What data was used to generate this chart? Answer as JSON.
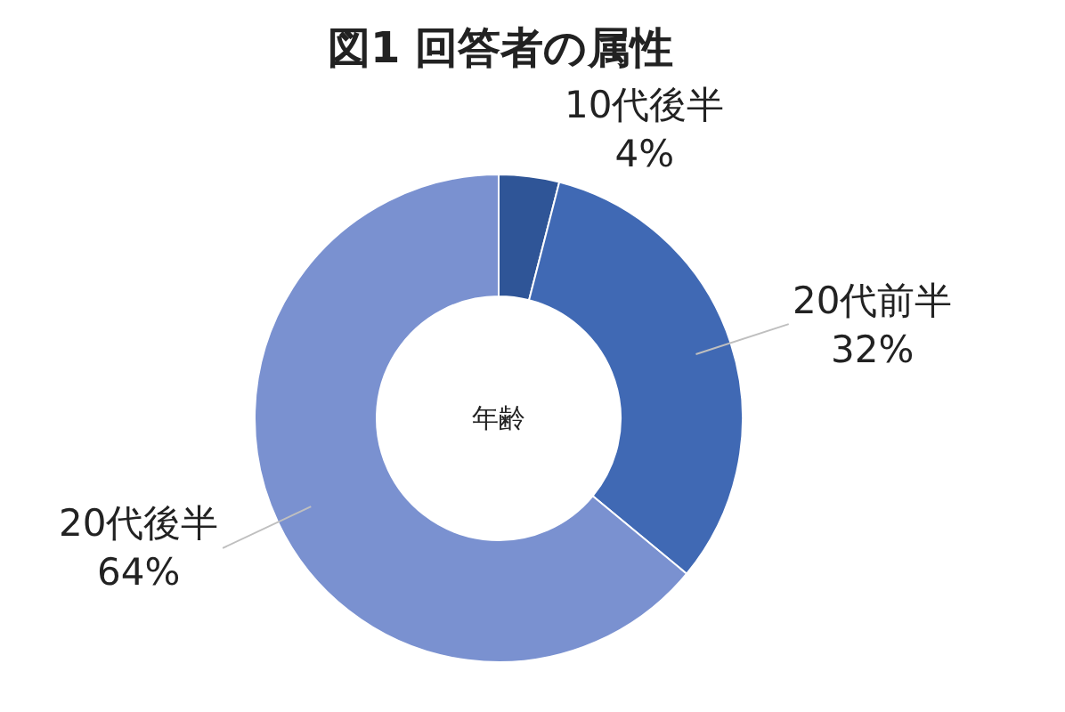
{
  "chart_data": {
    "type": "donut",
    "title": "図1 回答者の属性",
    "categories": [
      "10代後半",
      "20代前半",
      "20代後半"
    ],
    "values": [
      4,
      32,
      64
    ],
    "value_labels": [
      "4%",
      "32%",
      "64%"
    ],
    "colors": [
      "#2f5597",
      "#4069b4",
      "#7a91d0"
    ],
    "annotations": [
      "年齢"
    ],
    "legend": false
  }
}
